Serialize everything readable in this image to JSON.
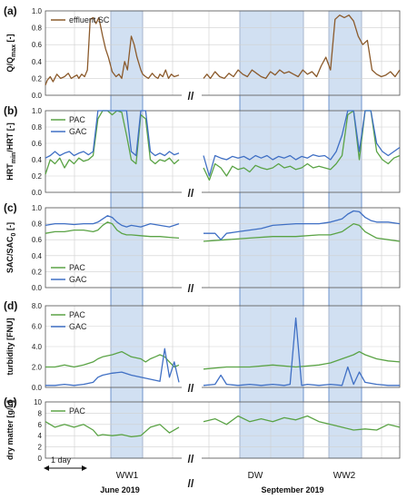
{
  "chart_data": [
    {
      "panel": "(a)",
      "type": "line",
      "ylabel": "Q/Q",
      "ylabel_sub": "max",
      "ylabel_suffix": " [-]",
      "ylim": [
        0,
        1.0
      ],
      "yticks": [
        "0.0",
        "0.2",
        "0.4",
        "0.6",
        "0.8",
        "1.0"
      ],
      "legend": "top-left",
      "series": [
        {
          "name": "effluent SC",
          "color": "#8B5A2B",
          "legend": true,
          "x": [
            0,
            0.02,
            0.05,
            0.08,
            0.12,
            0.16,
            0.2,
            0.24,
            0.27,
            0.3,
            0.33,
            0.35,
            0.38,
            0.41,
            0.44,
            0.47,
            0.5,
            0.53,
            0.56,
            0.6,
            0.63,
            0.66,
            0.7,
            0.74,
            0.77,
            0.8,
            0.83,
            0.86,
            0.9,
            0.93,
            0.96,
            1,
            1.02,
            1.05,
            1.08,
            1.12,
            1.15,
            1.18,
            1.2,
            1.23,
            1.26,
            1.29,
            1.32,
            1.35,
            1.4
          ],
          "y": [
            0.12,
            0.18,
            0.22,
            0.16,
            0.25,
            0.2,
            0.22,
            0.26,
            0.2,
            0.22,
            0.24,
            0.2,
            0.25,
            0.22,
            0.3,
            0.9,
            0.92,
            0.85,
            0.92,
            0.7,
            0.55,
            0.45,
            0.28,
            0.22,
            0.25,
            0.2,
            0.4,
            0.3,
            0.7,
            0.6,
            0.45,
            0.3,
            0.25,
            0.22,
            0.2,
            0.26,
            0.22,
            0.2,
            0.25,
            0.22,
            0.3,
            0.2,
            0.25,
            0.22,
            0.24
          ]
        },
        {
          "name": "",
          "color": "#8B5A2B",
          "legend": false,
          "x": [
            0,
            0.03,
            0.06,
            0.1,
            0.14,
            0.18,
            0.22,
            0.26,
            0.3,
            0.34,
            0.38,
            0.42,
            0.46,
            0.5,
            0.54,
            0.58,
            0.62,
            0.66,
            0.7,
            0.74,
            0.78,
            0.82,
            0.86,
            0.9,
            0.94,
            0.98,
            1.02,
            1.06,
            1.1,
            1.14,
            1.18,
            1.22,
            1.26,
            1.3,
            1.34,
            1.38,
            1.42,
            1.46,
            1.5,
            1.54,
            1.58,
            1.62,
            1.66,
            1.7
          ],
          "y": [
            0.2,
            0.25,
            0.2,
            0.28,
            0.22,
            0.2,
            0.26,
            0.22,
            0.3,
            0.25,
            0.22,
            0.3,
            0.26,
            0.22,
            0.2,
            0.28,
            0.24,
            0.3,
            0.26,
            0.28,
            0.25,
            0.22,
            0.3,
            0.25,
            0.28,
            0.22,
            0.35,
            0.45,
            0.3,
            0.9,
            0.95,
            0.92,
            0.95,
            0.88,
            0.7,
            0.6,
            0.65,
            0.3,
            0.25,
            0.22,
            0.24,
            0.28,
            0.22,
            0.3
          ]
        }
      ]
    },
    {
      "panel": "(b)",
      "type": "line",
      "ylabel": "HRT",
      "ylabel_sub": "min",
      "ylabel_suffix": "/HRT [-]",
      "ylim": [
        0,
        1.0
      ],
      "yticks": [
        "0.0",
        "0.2",
        "0.4",
        "0.6",
        "0.8",
        "1.0"
      ],
      "legend": "top-left",
      "series": [
        {
          "name": "PAC",
          "color": "#5AA345",
          "legend": true,
          "x": [
            0,
            0.05,
            0.1,
            0.15,
            0.2,
            0.25,
            0.3,
            0.35,
            0.4,
            0.45,
            0.5,
            0.55,
            0.6,
            0.65,
            0.7,
            0.75,
            0.8,
            0.85,
            0.9,
            0.95,
            1,
            1.05,
            1.1,
            1.15,
            1.2,
            1.25,
            1.3,
            1.35,
            1.4
          ],
          "y": [
            0.22,
            0.4,
            0.35,
            0.42,
            0.3,
            0.4,
            0.35,
            0.42,
            0.38,
            0.4,
            0.45,
            0.9,
            1.0,
            1.0,
            0.95,
            1.0,
            0.98,
            0.7,
            0.4,
            0.35,
            0.95,
            0.9,
            0.4,
            0.35,
            0.4,
            0.38,
            0.42,
            0.35,
            0.4
          ]
        },
        {
          "name": "GAC",
          "color": "#3F6FC4",
          "legend": true,
          "x": [
            0,
            0.05,
            0.1,
            0.15,
            0.2,
            0.25,
            0.3,
            0.35,
            0.4,
            0.45,
            0.5,
            0.55,
            0.6,
            0.65,
            0.7,
            0.75,
            0.8,
            0.85,
            0.9,
            0.95,
            1,
            1.05,
            1.1,
            1.15,
            1.2,
            1.25,
            1.3,
            1.35,
            1.4
          ],
          "y": [
            0.42,
            0.45,
            0.5,
            0.45,
            0.48,
            0.5,
            0.45,
            0.48,
            0.5,
            0.46,
            0.5,
            1.0,
            1.0,
            1.0,
            1.0,
            1.0,
            1.0,
            1.0,
            0.5,
            0.45,
            1.0,
            1.0,
            0.5,
            0.45,
            0.48,
            0.45,
            0.5,
            0.46,
            0.48
          ]
        },
        {
          "name": "",
          "color": "#5AA345",
          "legend": false,
          "x": [
            0,
            0.05,
            0.1,
            0.15,
            0.2,
            0.25,
            0.3,
            0.35,
            0.4,
            0.45,
            0.5,
            0.55,
            0.6,
            0.65,
            0.7,
            0.75,
            0.8,
            0.85,
            0.9,
            0.95,
            1,
            1.05,
            1.1,
            1.15,
            1.2,
            1.25,
            1.3,
            1.35,
            1.4,
            1.45,
            1.5,
            1.55,
            1.6,
            1.65,
            1.7
          ],
          "y": [
            0.3,
            0.15,
            0.35,
            0.3,
            0.2,
            0.32,
            0.28,
            0.3,
            0.25,
            0.33,
            0.3,
            0.28,
            0.3,
            0.35,
            0.3,
            0.32,
            0.28,
            0.3,
            0.35,
            0.3,
            0.32,
            0.3,
            0.28,
            0.35,
            0.45,
            0.95,
            1.0,
            0.4,
            1.0,
            1.0,
            0.5,
            0.4,
            0.35,
            0.42,
            0.45
          ]
        },
        {
          "name": "",
          "color": "#3F6FC4",
          "legend": false,
          "x": [
            0,
            0.05,
            0.1,
            0.15,
            0.2,
            0.25,
            0.3,
            0.35,
            0.4,
            0.45,
            0.5,
            0.55,
            0.6,
            0.65,
            0.7,
            0.75,
            0.8,
            0.85,
            0.9,
            0.95,
            1,
            1.05,
            1.1,
            1.15,
            1.2,
            1.25,
            1.3,
            1.35,
            1.4,
            1.45,
            1.5,
            1.55,
            1.6,
            1.65,
            1.7
          ],
          "y": [
            0.45,
            0.2,
            0.45,
            0.42,
            0.4,
            0.44,
            0.42,
            0.44,
            0.4,
            0.45,
            0.42,
            0.45,
            0.4,
            0.44,
            0.42,
            0.45,
            0.4,
            0.44,
            0.42,
            0.46,
            0.44,
            0.45,
            0.4,
            0.5,
            0.7,
            1.0,
            1.0,
            0.5,
            1.0,
            1.0,
            0.6,
            0.5,
            0.45,
            0.5,
            0.55
          ]
        }
      ]
    },
    {
      "panel": "(c)",
      "type": "line",
      "ylabel": "SAC/SAC",
      "ylabel_sub": "0",
      "ylabel_suffix": " [-]",
      "ylim": [
        0,
        1.0
      ],
      "yticks": [
        "0.0",
        "0.2",
        "0.4",
        "0.6",
        "0.8",
        "1.0"
      ],
      "legend": "bottom-left",
      "series": [
        {
          "name": "PAC",
          "color": "#5AA345",
          "legend": true,
          "x": [
            0,
            0.1,
            0.2,
            0.3,
            0.4,
            0.5,
            0.55,
            0.6,
            0.65,
            0.7,
            0.75,
            0.8,
            0.85,
            0.9,
            1,
            1.1,
            1.2,
            1.3,
            1.4
          ],
          "y": [
            0.68,
            0.7,
            0.7,
            0.72,
            0.72,
            0.7,
            0.72,
            0.78,
            0.82,
            0.8,
            0.72,
            0.68,
            0.66,
            0.66,
            0.65,
            0.64,
            0.64,
            0.63,
            0.62
          ]
        },
        {
          "name": "GAC",
          "color": "#3F6FC4",
          "legend": true,
          "x": [
            0,
            0.1,
            0.2,
            0.3,
            0.4,
            0.5,
            0.55,
            0.6,
            0.65,
            0.7,
            0.75,
            0.8,
            0.85,
            0.9,
            1,
            1.1,
            1.2,
            1.3,
            1.4
          ],
          "y": [
            0.78,
            0.8,
            0.8,
            0.79,
            0.8,
            0.8,
            0.82,
            0.86,
            0.9,
            0.88,
            0.82,
            0.78,
            0.76,
            0.78,
            0.76,
            0.8,
            0.78,
            0.76,
            0.8
          ]
        },
        {
          "name": "",
          "color": "#5AA345",
          "legend": false,
          "x": [
            0,
            0.2,
            0.4,
            0.6,
            0.8,
            1.0,
            1.1,
            1.2,
            1.25,
            1.3,
            1.35,
            1.4,
            1.45,
            1.5,
            1.6,
            1.7
          ],
          "y": [
            0.58,
            0.6,
            0.62,
            0.64,
            0.64,
            0.66,
            0.66,
            0.7,
            0.75,
            0.8,
            0.78,
            0.7,
            0.66,
            0.62,
            0.6,
            0.58
          ]
        },
        {
          "name": "",
          "color": "#3F6FC4",
          "legend": false,
          "x": [
            0,
            0.1,
            0.15,
            0.2,
            0.3,
            0.4,
            0.5,
            0.6,
            0.8,
            1.0,
            1.1,
            1.2,
            1.25,
            1.3,
            1.35,
            1.4,
            1.45,
            1.5,
            1.6,
            1.7
          ],
          "y": [
            0.68,
            0.68,
            0.6,
            0.68,
            0.7,
            0.72,
            0.74,
            0.78,
            0.8,
            0.8,
            0.82,
            0.86,
            0.92,
            0.96,
            0.95,
            0.88,
            0.84,
            0.82,
            0.82,
            0.8
          ]
        }
      ]
    },
    {
      "panel": "(d)",
      "type": "line",
      "ylabel": "turbidity [FNU]",
      "ylabel_sub": "",
      "ylabel_suffix": "",
      "ylim": [
        0,
        8.0
      ],
      "yticks": [
        "0.0",
        "2.0",
        "4.0",
        "6.0",
        "8.0"
      ],
      "legend": "top-left",
      "series": [
        {
          "name": "PAC",
          "color": "#5AA345",
          "legend": true,
          "x": [
            0,
            0.1,
            0.2,
            0.3,
            0.4,
            0.5,
            0.55,
            0.6,
            0.7,
            0.8,
            0.9,
            1.0,
            1.05,
            1.1,
            1.15,
            1.2,
            1.25,
            1.3,
            1.35,
            1.4
          ],
          "y": [
            2.0,
            2.0,
            2.2,
            2.0,
            2.2,
            2.5,
            2.8,
            3.0,
            3.2,
            3.5,
            3.0,
            2.8,
            2.5,
            2.8,
            3.0,
            3.2,
            3.0,
            2.5,
            2.0,
            2.2
          ]
        },
        {
          "name": "GAC",
          "color": "#3F6FC4",
          "legend": true,
          "x": [
            0,
            0.1,
            0.2,
            0.3,
            0.4,
            0.5,
            0.55,
            0.6,
            0.7,
            0.8,
            0.9,
            1.0,
            1.1,
            1.2,
            1.25,
            1.3,
            1.35,
            1.4
          ],
          "y": [
            0.2,
            0.2,
            0.3,
            0.2,
            0.3,
            0.5,
            1.0,
            1.2,
            1.4,
            1.5,
            1.2,
            1.0,
            0.8,
            0.6,
            3.8,
            1.0,
            2.5,
            0.5
          ]
        },
        {
          "name": "",
          "color": "#5AA345",
          "legend": false,
          "x": [
            0,
            0.2,
            0.4,
            0.6,
            0.8,
            1.0,
            1.05,
            1.1,
            1.2,
            1.3,
            1.35,
            1.4,
            1.5,
            1.6,
            1.7
          ],
          "y": [
            1.8,
            2.0,
            2.0,
            2.2,
            2.0,
            2.2,
            2.3,
            2.4,
            2.8,
            3.2,
            3.5,
            3.2,
            2.8,
            2.6,
            2.5
          ]
        },
        {
          "name": "",
          "color": "#3F6FC4",
          "legend": false,
          "x": [
            0,
            0.1,
            0.15,
            0.2,
            0.3,
            0.4,
            0.5,
            0.6,
            0.7,
            0.75,
            0.8,
            0.85,
            0.9,
            1.0,
            1.1,
            1.2,
            1.25,
            1.3,
            1.35,
            1.4,
            1.5,
            1.6,
            1.7
          ],
          "y": [
            0.2,
            0.3,
            1.2,
            0.3,
            0.2,
            0.3,
            0.2,
            0.3,
            0.2,
            0.3,
            6.8,
            0.2,
            0.3,
            0.2,
            0.3,
            0.2,
            2.0,
            0.3,
            1.5,
            0.5,
            0.3,
            0.2,
            0.2
          ]
        }
      ]
    },
    {
      "panel": "(e)",
      "type": "line",
      "ylabel": "dry matter [g/L]",
      "ylabel_sub": "",
      "ylabel_suffix": "",
      "ylim": [
        0,
        10.0
      ],
      "yticks": [
        "0",
        "2",
        "4",
        "6",
        "8",
        "10"
      ],
      "legend": "top-left",
      "series": [
        {
          "name": "PAC",
          "color": "#5AA345",
          "legend": true,
          "x": [
            0,
            0.1,
            0.2,
            0.3,
            0.4,
            0.5,
            0.55,
            0.6,
            0.7,
            0.8,
            0.9,
            1.0,
            1.1,
            1.2,
            1.3,
            1.4
          ],
          "y": [
            6.5,
            5.5,
            6.0,
            5.5,
            6.0,
            5.0,
            4.0,
            4.2,
            4.0,
            4.2,
            3.8,
            4.0,
            5.5,
            6.0,
            4.5,
            5.5
          ]
        },
        {
          "name": "",
          "color": "#5AA345",
          "legend": false,
          "x": [
            0,
            0.1,
            0.2,
            0.3,
            0.4,
            0.5,
            0.6,
            0.7,
            0.8,
            0.9,
            1.0,
            1.1,
            1.2,
            1.3,
            1.4,
            1.5,
            1.6,
            1.7
          ],
          "y": [
            6.5,
            7.0,
            6.0,
            7.5,
            6.5,
            7.0,
            6.5,
            7.2,
            6.8,
            7.5,
            6.5,
            6.0,
            5.5,
            5.0,
            5.2,
            5.0,
            6.0,
            5.5
          ]
        }
      ]
    }
  ],
  "annotations": {
    "ww1": "WW1",
    "dw": "DW",
    "ww2": "WW2",
    "one_day": "1 day",
    "month_june": "June 2019",
    "month_september": "September 2019",
    "break_symbol": "//"
  }
}
